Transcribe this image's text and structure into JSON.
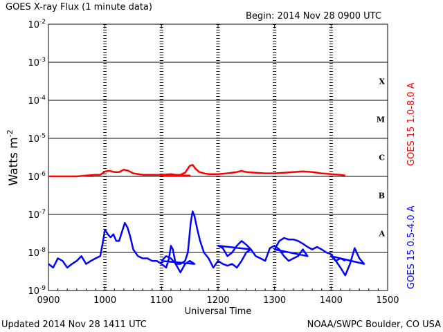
{
  "header": {
    "title": "GOES X-ray Flux (1 minute data)",
    "begin": "Begin: 2014 Nov 28 0900 UTC"
  },
  "footer": {
    "updated": "Updated 2014 Nov 28 1411 UTC",
    "source": "NOAA/SWPC Boulder, CO USA"
  },
  "chart_data": {
    "type": "line",
    "title": "GOES X-ray Flux (1 minute data)",
    "xlabel": "Universal Time",
    "ylabel_main": "Watts m",
    "ylabel_exp": "-2",
    "y_scale": "log",
    "xlim": [
      "0900",
      "1500"
    ],
    "ylim": [
      1e-09,
      0.01
    ],
    "x_ticks": [
      "0900",
      "1000",
      "1100",
      "1200",
      "1300",
      "1400",
      "1500"
    ],
    "y_ticks": [
      {
        "value": 1e-09,
        "exp": "-9"
      },
      {
        "value": 1e-08,
        "exp": "-8"
      },
      {
        "value": 1e-07,
        "exp": "-7"
      },
      {
        "value": 1e-06,
        "exp": "-6"
      },
      {
        "value": 1e-05,
        "exp": "-5"
      },
      {
        "value": 0.0001,
        "exp": "-4"
      },
      {
        "value": 0.001,
        "exp": "-3"
      },
      {
        "value": 0.01,
        "exp": "-2"
      }
    ],
    "y_tick_base": "10",
    "flare_classes": [
      {
        "label": "A",
        "value": 3.16e-08
      },
      {
        "label": "B",
        "value": 3.16e-07
      },
      {
        "label": "C",
        "value": 3.16e-06
      },
      {
        "label": "M",
        "value": 3.16e-05
      },
      {
        "label": "X",
        "value": 0.000316
      }
    ],
    "grid": "horizontal lines at each decade from 1e-8 to 1e-3; dashed vertical markers at each hour",
    "series": [
      {
        "name": "GOES 15 1.0-8.0 A",
        "color": "#ff0000",
        "x": [
          "0900",
          "0910",
          "0920",
          "0930",
          "0940",
          "0950",
          "0955",
          "1000",
          "1005",
          "1010",
          "1015",
          "1020",
          "1025",
          "1030",
          "1040",
          "1050",
          "1060",
          "1070",
          "1080",
          "1090",
          "1100",
          "1110",
          "1120",
          "1125",
          "1130",
          "1133",
          "1136",
          "1140",
          "1145",
          "1150",
          "1200",
          "1210",
          "1220",
          "1225",
          "1230",
          "1240",
          "1250",
          "1300",
          "1310",
          "1320",
          "1330",
          "1340",
          "1350",
          "1400",
          "1410",
          "1415"
        ],
        "values": [
          1e-06,
          1e-06,
          1e-06,
          1e-06,
          1.05e-06,
          1.1e-06,
          1.1e-06,
          1.35e-06,
          1.4e-06,
          1.3e-06,
          1.3e-06,
          1.5e-06,
          1.4e-06,
          1.2e-06,
          1.1e-06,
          1.1e-06,
          1.1e-06,
          1.15e-06,
          1.05e-06,
          1.05e-06,
          1.05e-06,
          1.1e-06,
          1.1e-06,
          1.25e-06,
          1.9e-06,
          2e-06,
          1.6e-06,
          1.3e-06,
          1.2e-06,
          1.15e-06,
          1.15e-06,
          1.2e-06,
          1.3e-06,
          1.4e-06,
          1.3e-06,
          1.25e-06,
          1.2e-06,
          1.2e-06,
          1.25e-06,
          1.3e-06,
          1.35e-06,
          1.3e-06,
          1.2e-06,
          1.15e-06,
          1.1e-06,
          1.05e-06
        ]
      },
      {
        "name": "GOES 15 0.5-4.0 A",
        "color": "#0000ff",
        "x": [
          "0900",
          "0905",
          "0910",
          "0915",
          "0920",
          "0925",
          "0930",
          "0935",
          "0940",
          "0945",
          "0950",
          "0955",
          "0958",
          "1000",
          "1003",
          "1006",
          "1009",
          "1012",
          "1015",
          "1018",
          "1021",
          "1024",
          "1027",
          "1030",
          "1035",
          "1040",
          "1045",
          "1050",
          "1055",
          "1060",
          "1065",
          "1068",
          "1070",
          "1072",
          "1075",
          "1080",
          "1085",
          "1090",
          "1095",
          "1100",
          "1105",
          "1110",
          "1115",
          "1120",
          "1125",
          "1128",
          "1131",
          "1133",
          "1135",
          "1138",
          "1141",
          "1145",
          "1150",
          "1155",
          "1160",
          "1165",
          "1170",
          "1175",
          "1180",
          "1185",
          "1190",
          "1195",
          "1200",
          "1205",
          "1210",
          "1215",
          "1220",
          "1225",
          "1230",
          "1235",
          "1240",
          "1245",
          "1250",
          "1255",
          "1260",
          "1265",
          "1270",
          "1275",
          "1280",
          "1285",
          "1290",
          "1295",
          "1300",
          "1305",
          "1310",
          "1315",
          "1320",
          "1325",
          "1330",
          "1335",
          "1340",
          "1345",
          "1350",
          "1355",
          "1360",
          "1365",
          "1370",
          "1375",
          "1380",
          "1385",
          "1390",
          "1395",
          "1400",
          "1405",
          "1410",
          "1415"
        ],
        "values": [
          5e-09,
          4e-09,
          7e-09,
          6e-09,
          4e-09,
          5e-09,
          6e-09,
          8e-09,
          5e-09,
          6e-09,
          7e-09,
          8e-09,
          2e-08,
          4e-08,
          3e-08,
          2.5e-08,
          3e-08,
          2e-08,
          2e-08,
          3.5e-08,
          6e-08,
          4.5e-08,
          2.5e-08,
          1.2e-08,
          8e-09,
          7e-09,
          7e-09,
          6e-09,
          6e-09,
          5e-09,
          4e-09,
          7e-09,
          1.5e-08,
          1.2e-08,
          5e-09,
          3e-09,
          5e-09,
          6e-09,
          5e-09,
          6e-09,
          8e-09,
          7e-09,
          5e-09,
          5e-09,
          6e-09,
          1e-08,
          6e-08,
          1.2e-07,
          9e-08,
          4e-08,
          2e-08,
          1e-08,
          7e-09,
          4e-09,
          6e-09,
          5e-09,
          4.5e-09,
          5e-09,
          4e-09,
          6e-09,
          1e-08,
          1.2e-08,
          1.5e-08,
          1.3e-08,
          8e-09,
          1e-08,
          1.5e-08,
          2e-08,
          1.6e-08,
          1.2e-08,
          8e-09,
          7e-09,
          6e-09,
          1.3e-08,
          1.5e-08,
          1.2e-08,
          8e-09,
          6e-09,
          7e-09,
          8e-09,
          1.2e-08,
          8e-09,
          1.2e-08,
          2e-08,
          2.4e-08,
          2.2e-08,
          2.2e-08,
          2e-08,
          1.7e-08,
          1.4e-08,
          1.2e-08,
          1.4e-08,
          1.2e-08,
          1e-08,
          9e-09,
          6e-09,
          4e-09,
          2.5e-09,
          5e-09,
          1.3e-08,
          7e-09,
          5e-09,
          8e-09,
          6e-09,
          7e-09,
          6e-09
        ]
      }
    ]
  }
}
